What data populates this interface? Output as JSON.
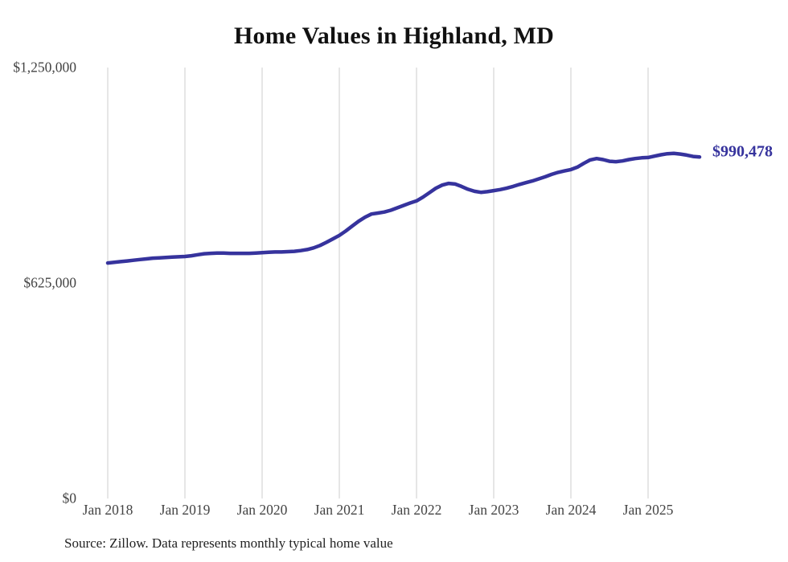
{
  "chart": {
    "title": "Home Values in Highland, MD",
    "source": "Source: Zillow. Data represents monthly typical home value",
    "end_label": "$990,478",
    "line_color": "#36339d",
    "grid_color": "#cccccc"
  },
  "chart_data": {
    "type": "line",
    "title": "Home Values in Highland, MD",
    "xlabel": "",
    "ylabel": "",
    "ylim": [
      0,
      1250000
    ],
    "grid": "vertical-only",
    "legend": "none",
    "x_frequency": "monthly",
    "x_range": [
      "Jan 2018",
      "Sep 2025"
    ],
    "x_tick_labels": [
      "Jan 2018",
      "Jan 2019",
      "Jan 2020",
      "Jan 2021",
      "Jan 2022",
      "Jan 2023",
      "Jan 2024",
      "Jan 2025"
    ],
    "y_tick_labels": [
      "$1,250,000",
      "$625,000",
      "$0"
    ],
    "y_tick_values": [
      1250000,
      625000,
      0
    ],
    "final_value": 990478,
    "series": [
      {
        "name": "Typical home value",
        "values": [
          683000,
          685000,
          687000,
          689000,
          691000,
          693000,
          695000,
          697000,
          698000,
          699000,
          700000,
          701000,
          702000,
          704000,
          707000,
          710000,
          711000,
          712000,
          712000,
          711000,
          711000,
          711000,
          711000,
          712000,
          713000,
          714000,
          715000,
          715000,
          716000,
          717000,
          719000,
          722000,
          727000,
          734000,
          743000,
          753000,
          763000,
          776000,
          790000,
          804000,
          816000,
          825000,
          828000,
          831000,
          836000,
          843000,
          850000,
          857000,
          863000,
          874000,
          887000,
          900000,
          909000,
          914000,
          912000,
          905000,
          897000,
          891000,
          888000,
          890000,
          893000,
          896000,
          900000,
          905000,
          911000,
          916000,
          921000,
          927000,
          933000,
          940000,
          946000,
          950000,
          954000,
          961000,
          972000,
          982000,
          986000,
          983000,
          978000,
          977000,
          979000,
          983000,
          986000,
          988000,
          989000,
          993000,
          997000,
          1000000,
          1001000,
          999000,
          996000,
          992000,
          990478
        ]
      }
    ]
  }
}
